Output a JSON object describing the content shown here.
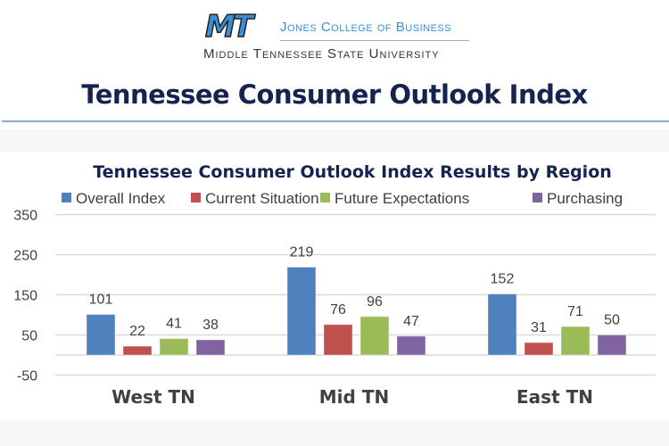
{
  "header": {
    "logo_mark": "MT",
    "college": "Jones College of Business",
    "university": "Middle Tennessee State University",
    "title": "Tennessee Consumer Outlook Index"
  },
  "chart_data": {
    "type": "bar",
    "title": "Tennessee Consumer Outlook Index Results by Region",
    "categories": [
      "West TN",
      "Mid TN",
      "East TN"
    ],
    "series": [
      {
        "name": "Overall Index",
        "color": "#4f81bd",
        "values": [
          101,
          219,
          152
        ]
      },
      {
        "name": "Current Situation",
        "color": "#c0504d",
        "values": [
          22,
          76,
          31
        ]
      },
      {
        "name": "Future Expectations",
        "color": "#9bbb59",
        "values": [
          41,
          96,
          71
        ]
      },
      {
        "name": "Purchasing",
        "color": "#8064a2",
        "values": [
          38,
          47,
          50
        ]
      }
    ],
    "yticks": [
      350,
      250,
      150,
      50,
      -50
    ],
    "ylim": [
      -50,
      350
    ],
    "grid": true,
    "legend": "top",
    "xlabel": "",
    "ylabel": ""
  }
}
